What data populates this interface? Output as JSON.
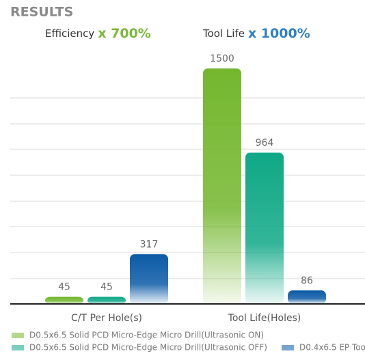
{
  "chart_data": {
    "type": "bar",
    "title": "RESULTS",
    "annotations": [
      {
        "label": "Efficiency",
        "highlight": "x 700%",
        "color": "#7ab83a"
      },
      {
        "label": "Tool Life",
        "highlight": "x 1000%",
        "color": "#2f7fc1"
      }
    ],
    "categories": [
      "C/T Per Hole(s)",
      "Tool Life(Holes)"
    ],
    "series": [
      {
        "name": "D0.5x6.5 Solid PCD Micro-Edge Micro Drill(Ultrasonic ON)",
        "color": "#74b72e",
        "values": [
          45,
          1500
        ]
      },
      {
        "name": "D0.5x6.5 Solid PCD Micro-Edge Micro Drill(Ultrasonic OFF)",
        "color": "#0fa886",
        "values": [
          45,
          964
        ]
      },
      {
        "name": "D0.4x6.5 EP Too",
        "color": "#0b5aa6",
        "values": [
          317,
          86
        ]
      }
    ],
    "ylim": [
      0,
      1500
    ]
  }
}
